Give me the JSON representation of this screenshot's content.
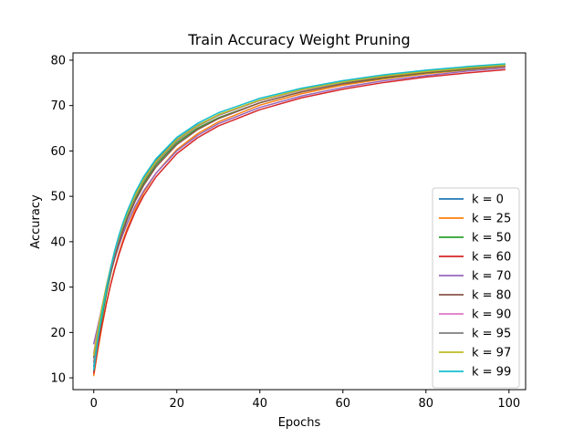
{
  "chart_data": {
    "type": "line",
    "title": "Train Accuracy Weight Pruning",
    "xlabel": "Epochs",
    "ylabel": "Accuracy",
    "xlim": [
      -5,
      104
    ],
    "ylim": [
      7.4,
      81.6
    ],
    "xticks": [
      0,
      20,
      40,
      60,
      80,
      100
    ],
    "yticks": [
      10,
      20,
      30,
      40,
      50,
      60,
      70,
      80
    ],
    "grid": false,
    "legend_position": "lower-right",
    "x": [
      0,
      1,
      2,
      3,
      4,
      5,
      6,
      7,
      8,
      10,
      12,
      15,
      20,
      25,
      30,
      40,
      50,
      60,
      70,
      80,
      90,
      99
    ],
    "series": [
      {
        "name": "k = 0",
        "color": "#1f77b4",
        "values": [
          12.5,
          19.0,
          24.7,
          29.7,
          34.0,
          37.8,
          41.1,
          43.9,
          46.4,
          50.6,
          54.0,
          58.0,
          62.6,
          65.7,
          67.9,
          71.1,
          73.4,
          75.1,
          76.4,
          77.4,
          78.2,
          78.8
        ]
      },
      {
        "name": "k = 25",
        "color": "#ff7f0e",
        "values": [
          10.5,
          16.2,
          21.4,
          26.1,
          30.3,
          34.0,
          37.3,
          40.2,
          42.8,
          47.2,
          50.8,
          55.1,
          60.3,
          63.8,
          66.4,
          70.1,
          72.6,
          74.5,
          75.9,
          77.0,
          77.9,
          78.6
        ]
      },
      {
        "name": "k = 50",
        "color": "#2ca02c",
        "values": [
          11.5,
          17.8,
          23.4,
          28.3,
          32.6,
          36.4,
          39.7,
          42.6,
          45.1,
          49.4,
          52.9,
          57.0,
          61.8,
          65.0,
          67.3,
          70.6,
          73.0,
          74.8,
          76.1,
          77.2,
          78.0,
          78.7
        ]
      },
      {
        "name": "k = 60",
        "color": "#d62728",
        "values": [
          11.0,
          16.8,
          21.8,
          26.3,
          30.3,
          33.8,
          37.0,
          39.8,
          42.3,
          46.6,
          50.1,
          54.3,
          59.4,
          62.9,
          65.5,
          69.1,
          71.7,
          73.6,
          75.1,
          76.3,
          77.2,
          77.9
        ]
      },
      {
        "name": "k = 70",
        "color": "#9467bd",
        "values": [
          17.5,
          21.5,
          25.6,
          29.4,
          32.9,
          36.1,
          39.0,
          41.6,
          43.9,
          47.9,
          51.2,
          55.1,
          60.0,
          63.4,
          66.0,
          69.6,
          72.1,
          74.0,
          75.5,
          76.6,
          77.6,
          78.3
        ]
      },
      {
        "name": "k = 80",
        "color": "#8c564b",
        "values": [
          14.5,
          19.8,
          24.6,
          29.0,
          32.9,
          36.4,
          39.5,
          42.3,
          44.8,
          49.0,
          52.4,
          56.5,
          61.4,
          64.7,
          67.1,
          70.6,
          73.0,
          74.8,
          76.2,
          77.3,
          78.1,
          78.7
        ]
      },
      {
        "name": "k = 90",
        "color": "#e377c2",
        "values": [
          15.5,
          20.8,
          25.7,
          30.1,
          34.0,
          37.5,
          40.6,
          43.4,
          45.8,
          50.0,
          53.4,
          57.4,
          62.2,
          65.4,
          67.8,
          71.1,
          73.4,
          75.2,
          76.5,
          77.5,
          78.3,
          78.9
        ]
      },
      {
        "name": "k = 95",
        "color": "#7f7f7f",
        "values": [
          13.5,
          19.4,
          24.7,
          29.4,
          33.6,
          37.3,
          40.5,
          43.3,
          45.8,
          50.1,
          53.5,
          57.5,
          62.3,
          65.5,
          67.9,
          71.2,
          73.5,
          75.3,
          76.6,
          77.6,
          78.4,
          79.0
        ]
      },
      {
        "name": "k = 97",
        "color": "#bcbd22",
        "values": [
          15.0,
          20.6,
          25.6,
          30.1,
          34.1,
          37.7,
          40.8,
          43.6,
          46.1,
          50.3,
          53.7,
          57.7,
          62.5,
          65.6,
          68.0,
          71.2,
          73.5,
          75.2,
          76.5,
          77.5,
          78.3,
          78.9
        ]
      },
      {
        "name": "k = 99",
        "color": "#17becf",
        "values": [
          11.8,
          18.4,
          24.3,
          29.4,
          33.9,
          37.8,
          41.2,
          44.1,
          46.6,
          50.9,
          54.3,
          58.3,
          63.0,
          66.1,
          68.4,
          71.6,
          73.8,
          75.5,
          76.8,
          77.8,
          78.6,
          79.2
        ]
      }
    ]
  }
}
